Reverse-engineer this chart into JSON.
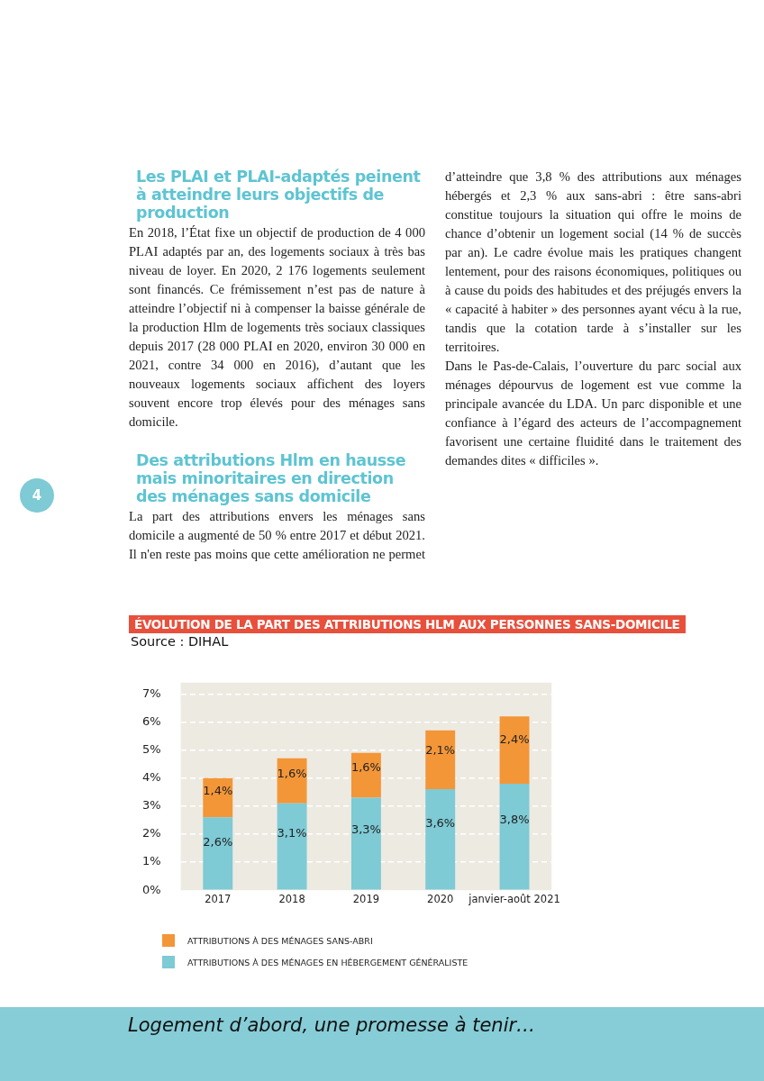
{
  "chart_data": {
    "type": "bar",
    "title": "ÉVOLUTION DE LA PART DES ATTRIBUTIONS  HLM AUX PERSONNES SANS-DOMICILE",
    "subtitle": "Source : DIHAL",
    "categories": [
      "2017",
      "2018",
      "2019",
      "2020",
      "janvier-août 2021"
    ],
    "series": [
      {
        "name": "ATTRIBUTIONS À DES MÉNAGES EN  HÉBERGEMENT GÉNÉRALISTE",
        "color": "#7ecad5",
        "values": [
          2.6,
          3.1,
          3.3,
          3.6,
          3.8
        ],
        "value_labels": [
          "2,6%",
          "3,1%",
          "3,3%",
          "3,6%",
          "3,8%"
        ]
      },
      {
        "name": "ATTRIBUTIONS  À DES MÉNAGES SANS-ABRI",
        "color": "#f39638",
        "values": [
          1.4,
          1.6,
          1.6,
          2.1,
          2.4
        ],
        "value_labels": [
          "1,4%",
          "1,6%",
          "1,6%",
          "2,1%",
          "2,4%"
        ]
      }
    ],
    "stacked": true,
    "ylim": [
      0,
      7.4
    ],
    "yticks": [
      {
        "value": 0,
        "label": "0%"
      },
      {
        "value": 1,
        "label": "1%"
      },
      {
        "value": 2,
        "label": "2%"
      },
      {
        "value": 3,
        "label": "3%"
      },
      {
        "value": 4,
        "label": "4%"
      },
      {
        "value": 5,
        "label": "5%"
      },
      {
        "value": 6,
        "label": "6%"
      },
      {
        "value": 7,
        "label": "7%"
      }
    ],
    "grid": "y",
    "legend": "bottom",
    "annotations": [
      "Les PLAI et PLAI-adaptés peinent à atteindre leurs objectifs de production",
      "En 2018, l’État fixe un objectif de production de 4 000 PLAI adaptés par an, des logements sociaux à très bas niveau de loyer. En 2020, 2 176 logements seulement sont financés. Ce frémissement n’est pas de nature à atteindre l’objectif ni à compenser la baisse générale de la production Hlm de logements très sociaux classiques depuis 2017 (28 000 PLAI en 2020, environ 30 000 en 2021, contre 34 000 en 2016), d’autant que les nouveaux logements sociaux affichent des loyers souvent encore trop élevés pour des ménages sans domicile.",
      "Des attributions Hlm en hausse mais minoritaires en direction des ménages sans domicile",
      "La part des attributions envers les ménages sans domicile a augmenté de 50 % entre 2017 et début 2021. Il n'en reste pas moins que cette amélioration ne permet d’atteindre que 3,8 % des attributions aux ménages hébergés et 2,3 % aux sans-abri : être sans-abri constitue toujours la situation qui offre le moins de chance d’obtenir un logement social (14 % de succès par an). Le cadre évolue mais les pratiques changent lentement, pour des raisons économiques, politiques ou à cause du poids des habitudes et des préjugés envers la « capacité à habiter » des personnes ayant vécu à  la rue, tandis que la cotation tarde à s’installer sur les territoires.",
      "Dans le Pas-de-Calais, l’ouverture du parc social aux ménages dépourvus de logement est vue comme la principale avancée du LDA. Un parc disponible et une confiance à l’égard des acteurs de l’accompagnement favorisent une certaine fluidité dans le traitement des demandes dites « difficiles ».",
      "4",
      "Logement d’abord, une promesse à tenir…"
    ]
  }
}
